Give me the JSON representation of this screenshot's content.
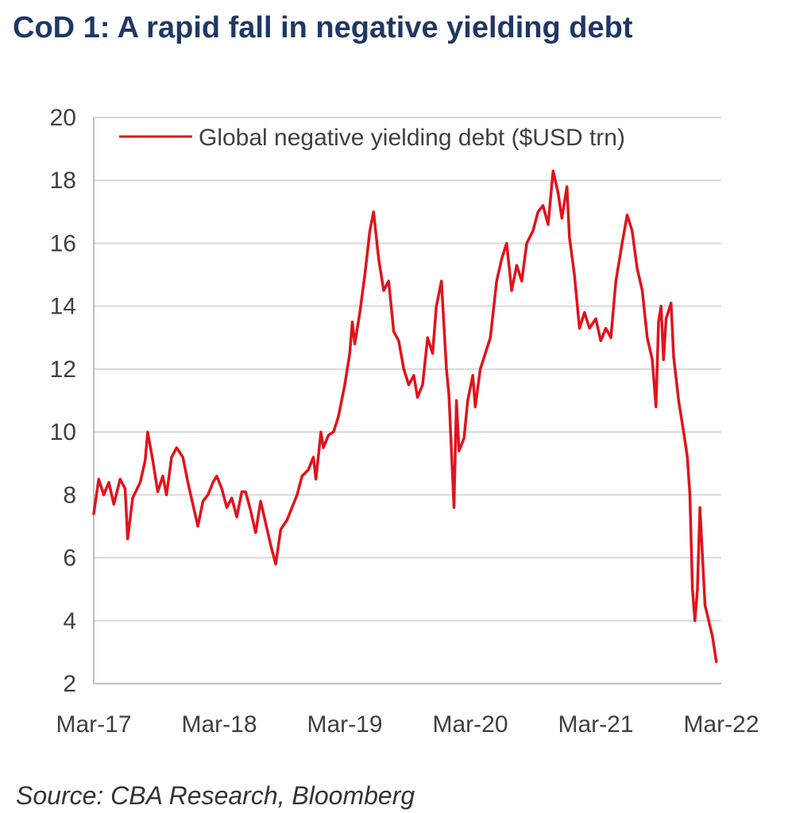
{
  "title": "CoD 1:  A rapid fall in negative yielding debt",
  "source": "Source: CBA Research, Bloomberg",
  "colors": {
    "title": "#1f3864",
    "series": "#e3121b",
    "grid": "#d9d9d9",
    "axis_text": "#404040"
  },
  "chart_data": {
    "type": "line",
    "title": "",
    "xlabel": "",
    "ylabel": "",
    "ylim": [
      2,
      20
    ],
    "yticks": [
      2,
      4,
      6,
      8,
      10,
      12,
      14,
      16,
      18,
      20
    ],
    "xticks": [
      "Mar-17",
      "Mar-18",
      "Mar-19",
      "Mar-20",
      "Mar-21",
      "Mar-22"
    ],
    "xlim": [
      2017.17,
      2022.17
    ],
    "grid": "horizontal",
    "legend_position": "top",
    "series": [
      {
        "name": "Global negative yielding debt ($USD trn)",
        "points": [
          [
            2017.17,
            7.4
          ],
          [
            2017.21,
            8.5
          ],
          [
            2017.25,
            8.0
          ],
          [
            2017.29,
            8.4
          ],
          [
            2017.33,
            7.7
          ],
          [
            2017.38,
            8.5
          ],
          [
            2017.42,
            8.2
          ],
          [
            2017.44,
            6.6
          ],
          [
            2017.48,
            7.9
          ],
          [
            2017.54,
            8.4
          ],
          [
            2017.58,
            9.1
          ],
          [
            2017.6,
            10.0
          ],
          [
            2017.64,
            9.1
          ],
          [
            2017.68,
            8.1
          ],
          [
            2017.72,
            8.6
          ],
          [
            2017.75,
            8.0
          ],
          [
            2017.79,
            9.2
          ],
          [
            2017.83,
            9.5
          ],
          [
            2017.88,
            9.2
          ],
          [
            2017.92,
            8.4
          ],
          [
            2017.96,
            7.7
          ],
          [
            2018.0,
            7.0
          ],
          [
            2018.04,
            7.8
          ],
          [
            2018.08,
            8.0
          ],
          [
            2018.12,
            8.4
          ],
          [
            2018.15,
            8.6
          ],
          [
            2018.19,
            8.2
          ],
          [
            2018.23,
            7.6
          ],
          [
            2018.27,
            7.9
          ],
          [
            2018.31,
            7.3
          ],
          [
            2018.35,
            8.1
          ],
          [
            2018.38,
            8.1
          ],
          [
            2018.42,
            7.5
          ],
          [
            2018.46,
            6.8
          ],
          [
            2018.5,
            7.8
          ],
          [
            2018.54,
            7.1
          ],
          [
            2018.58,
            6.4
          ],
          [
            2018.62,
            5.8
          ],
          [
            2018.66,
            6.9
          ],
          [
            2018.71,
            7.2
          ],
          [
            2018.75,
            7.6
          ],
          [
            2018.79,
            8.0
          ],
          [
            2018.83,
            8.6
          ],
          [
            2018.88,
            8.8
          ],
          [
            2018.92,
            9.2
          ],
          [
            2018.94,
            8.5
          ],
          [
            2018.98,
            10.0
          ],
          [
            2019.0,
            9.5
          ],
          [
            2019.04,
            9.9
          ],
          [
            2019.08,
            10.0
          ],
          [
            2019.12,
            10.5
          ],
          [
            2019.17,
            11.5
          ],
          [
            2019.21,
            12.5
          ],
          [
            2019.23,
            13.5
          ],
          [
            2019.25,
            12.8
          ],
          [
            2019.29,
            13.8
          ],
          [
            2019.33,
            15.0
          ],
          [
            2019.37,
            16.4
          ],
          [
            2019.4,
            17.0
          ],
          [
            2019.44,
            15.5
          ],
          [
            2019.48,
            14.5
          ],
          [
            2019.52,
            14.8
          ],
          [
            2019.56,
            13.2
          ],
          [
            2019.6,
            12.9
          ],
          [
            2019.64,
            12.0
          ],
          [
            2019.68,
            11.5
          ],
          [
            2019.72,
            11.8
          ],
          [
            2019.75,
            11.1
          ],
          [
            2019.79,
            11.5
          ],
          [
            2019.83,
            13.0
          ],
          [
            2019.87,
            12.5
          ],
          [
            2019.9,
            14.0
          ],
          [
            2019.94,
            14.8
          ],
          [
            2019.98,
            12.0
          ],
          [
            2020.0,
            11.2
          ],
          [
            2020.04,
            7.6
          ],
          [
            2020.06,
            11.0
          ],
          [
            2020.08,
            9.4
          ],
          [
            2020.12,
            9.8
          ],
          [
            2020.15,
            11.0
          ],
          [
            2020.19,
            11.8
          ],
          [
            2020.21,
            10.8
          ],
          [
            2020.25,
            12.0
          ],
          [
            2020.29,
            12.5
          ],
          [
            2020.33,
            13.0
          ],
          [
            2020.38,
            14.8
          ],
          [
            2020.42,
            15.5
          ],
          [
            2020.46,
            16.0
          ],
          [
            2020.5,
            14.5
          ],
          [
            2020.54,
            15.3
          ],
          [
            2020.58,
            14.8
          ],
          [
            2020.62,
            16.0
          ],
          [
            2020.67,
            16.4
          ],
          [
            2020.71,
            17.0
          ],
          [
            2020.75,
            17.2
          ],
          [
            2020.79,
            16.6
          ],
          [
            2020.83,
            18.3
          ],
          [
            2020.87,
            17.6
          ],
          [
            2020.9,
            16.8
          ],
          [
            2020.94,
            17.8
          ],
          [
            2020.96,
            16.2
          ],
          [
            2021.0,
            15.0
          ],
          [
            2021.04,
            13.3
          ],
          [
            2021.08,
            13.8
          ],
          [
            2021.12,
            13.3
          ],
          [
            2021.17,
            13.6
          ],
          [
            2021.21,
            12.9
          ],
          [
            2021.25,
            13.3
          ],
          [
            2021.29,
            13.0
          ],
          [
            2021.33,
            14.8
          ],
          [
            2021.38,
            16.0
          ],
          [
            2021.42,
            16.9
          ],
          [
            2021.46,
            16.4
          ],
          [
            2021.5,
            15.2
          ],
          [
            2021.54,
            14.5
          ],
          [
            2021.58,
            13.0
          ],
          [
            2021.62,
            12.3
          ],
          [
            2021.65,
            10.8
          ],
          [
            2021.67,
            13.5
          ],
          [
            2021.69,
            14.0
          ],
          [
            2021.71,
            12.3
          ],
          [
            2021.73,
            13.6
          ],
          [
            2021.77,
            14.1
          ],
          [
            2021.79,
            12.4
          ],
          [
            2021.83,
            11.0
          ],
          [
            2021.87,
            10.0
          ],
          [
            2021.9,
            9.2
          ],
          [
            2021.92,
            8.0
          ],
          [
            2021.94,
            5.0
          ],
          [
            2021.96,
            4.0
          ],
          [
            2021.98,
            5.0
          ],
          [
            2022.0,
            7.6
          ],
          [
            2022.04,
            4.5
          ],
          [
            2022.1,
            3.5
          ],
          [
            2022.13,
            2.7
          ]
        ]
      }
    ]
  }
}
